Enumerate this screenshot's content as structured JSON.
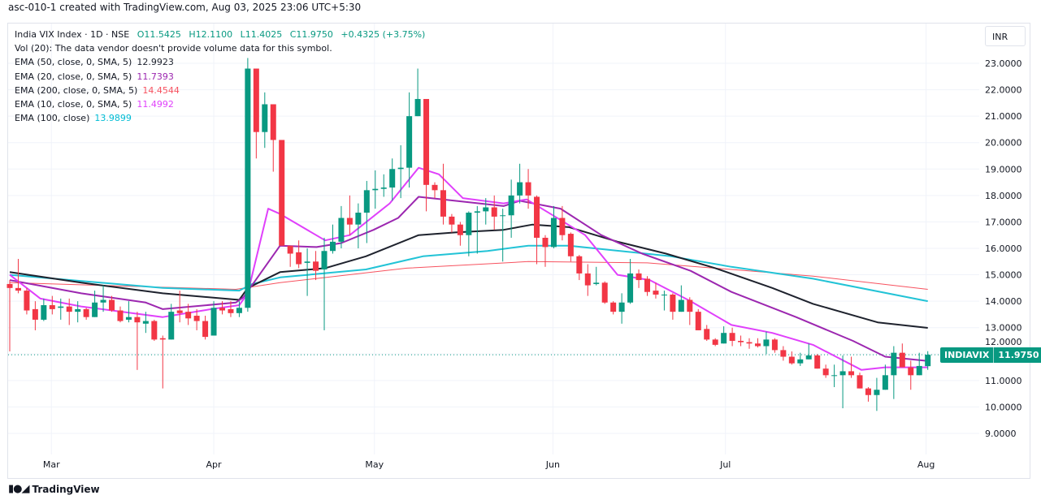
{
  "header": "asc-010-1 created with TradingView.com, Aug 03, 2025 23:06 UTC+5:30",
  "legend": {
    "symbol": "India VIX Index · 1D · NSE",
    "open": "O11.5425",
    "high": "H12.1100",
    "low": "L11.4025",
    "close": "C11.9750",
    "change": "+0.4325 (+3.75%)",
    "volume_note": "Vol (20): The data vendor doesn't provide volume data for this symbol.",
    "indicators": [
      {
        "label": "EMA (50, close, 0, SMA, 5)",
        "value": "12.9923",
        "color": "#1e222d"
      },
      {
        "label": "EMA (20, close, 0, SMA, 5)",
        "value": "11.7393",
        "color": "#9c27b0"
      },
      {
        "label": "EMA (200, close, 0, SMA, 5)",
        "value": "14.4544",
        "color": "#f7525f"
      },
      {
        "label": "EMA (10, close, 0, SMA, 5)",
        "value": "11.4992",
        "color": "#e040fb"
      },
      {
        "label": "EMA (100, close)",
        "value": "13.9899",
        "color": "#00bcd4"
      }
    ]
  },
  "currency": "INR",
  "price_label": {
    "symbol": "INDIAVIX",
    "value": "11.9750"
  },
  "footer": {
    "brand": "TradingView"
  },
  "colors": {
    "up": "#089981",
    "down": "#f23645",
    "grid": "#f0f3fa",
    "text": "#131722",
    "change": "#089981"
  },
  "chart_data": {
    "type": "candlestick",
    "title": "India VIX Index · 1D · NSE",
    "ylim": [
      8.2,
      23.9
    ],
    "y_ticks": [
      "23.0000",
      "22.0000",
      "21.0000",
      "20.0000",
      "19.0000",
      "18.0000",
      "17.0000",
      "16.0000",
      "15.0000",
      "14.0000",
      "13.0000",
      "12.0000",
      "11.0000",
      "10.0000",
      "9.0000"
    ],
    "x_ticks": [
      {
        "label": "Mar",
        "bar": 4.9
      },
      {
        "label": "Apr",
        "bar": 24
      },
      {
        "label": "May",
        "bar": 42.9
      },
      {
        "label": "Jun",
        "bar": 63.9
      },
      {
        "label": "Jul",
        "bar": 84.2
      },
      {
        "label": "Aug",
        "bar": 107.8
      }
    ],
    "last_price": 11.975,
    "ohlc": [
      [
        14.65,
        14.8,
        12.1,
        14.5
      ],
      [
        14.5,
        15.6,
        14.3,
        14.4
      ],
      [
        14.4,
        14.5,
        13.5,
        13.65
      ],
      [
        13.7,
        14.0,
        12.9,
        13.3
      ],
      [
        13.3,
        14.1,
        13.25,
        13.85
      ],
      [
        13.85,
        14.2,
        13.5,
        13.7
      ],
      [
        13.75,
        14.1,
        13.3,
        13.8
      ],
      [
        13.8,
        14.1,
        13.1,
        13.6
      ],
      [
        13.6,
        14.0,
        13.2,
        13.7
      ],
      [
        13.7,
        13.75,
        13.3,
        13.4
      ],
      [
        13.4,
        14.4,
        13.4,
        13.95
      ],
      [
        13.95,
        14.6,
        13.6,
        14.05
      ],
      [
        14.05,
        14.2,
        13.6,
        13.65
      ],
      [
        13.65,
        13.8,
        13.2,
        13.25
      ],
      [
        13.3,
        14.0,
        13.2,
        13.4
      ],
      [
        13.4,
        13.6,
        11.4,
        13.2
      ],
      [
        13.15,
        13.6,
        12.8,
        13.25
      ],
      [
        13.25,
        13.3,
        12.5,
        12.55
      ],
      [
        12.6,
        12.7,
        10.7,
        12.55
      ],
      [
        12.55,
        13.9,
        12.55,
        13.6
      ],
      [
        13.65,
        14.4,
        13.2,
        13.55
      ],
      [
        13.6,
        13.9,
        13.1,
        13.35
      ],
      [
        13.45,
        13.7,
        12.9,
        13.25
      ],
      [
        13.25,
        13.45,
        12.55,
        12.65
      ],
      [
        12.7,
        14.0,
        12.7,
        13.75
      ],
      [
        13.75,
        14.0,
        13.5,
        13.65
      ],
      [
        13.7,
        14.0,
        13.4,
        13.55
      ],
      [
        13.55,
        14.0,
        13.4,
        13.75
      ],
      [
        13.75,
        23.2,
        13.6,
        22.8
      ],
      [
        22.8,
        22.8,
        19.4,
        20.4
      ],
      [
        20.4,
        21.9,
        19.8,
        21.45
      ],
      [
        21.45,
        21.45,
        18.9,
        20.1
      ],
      [
        20.1,
        20.1,
        16.1,
        16.1
      ],
      [
        16.1,
        16.1,
        15.3,
        15.8
      ],
      [
        15.85,
        16.3,
        15.25,
        15.4
      ],
      [
        15.45,
        16.0,
        14.2,
        15.5
      ],
      [
        15.5,
        15.9,
        14.8,
        15.15
      ],
      [
        15.2,
        16.4,
        12.9,
        15.9
      ],
      [
        15.9,
        16.9,
        15.8,
        16.25
      ],
      [
        16.25,
        17.6,
        16.0,
        17.15
      ],
      [
        17.15,
        18.0,
        16.5,
        16.9
      ],
      [
        16.9,
        17.7,
        16.0,
        17.35
      ],
      [
        17.35,
        18.55,
        16.2,
        18.2
      ],
      [
        18.2,
        18.95,
        17.5,
        18.25
      ],
      [
        18.25,
        18.8,
        17.95,
        18.3
      ],
      [
        18.3,
        19.4,
        17.8,
        19.0
      ],
      [
        19.0,
        19.9,
        17.9,
        19.05
      ],
      [
        19.05,
        21.9,
        18.3,
        21.0
      ],
      [
        21.0,
        22.8,
        21.0,
        21.65
      ],
      [
        21.65,
        21.65,
        17.4,
        18.4
      ],
      [
        18.4,
        18.5,
        17.9,
        18.2
      ],
      [
        18.2,
        19.2,
        16.9,
        17.2
      ],
      [
        17.2,
        17.3,
        16.6,
        16.9
      ],
      [
        16.9,
        17.0,
        16.1,
        16.5
      ],
      [
        16.5,
        17.4,
        15.7,
        17.35
      ],
      [
        17.35,
        17.6,
        15.8,
        17.4
      ],
      [
        17.4,
        17.9,
        16.9,
        17.55
      ],
      [
        17.55,
        18.0,
        16.7,
        17.2
      ],
      [
        17.25,
        17.5,
        15.5,
        17.25
      ],
      [
        17.25,
        18.6,
        16.4,
        18.0
      ],
      [
        18.0,
        19.2,
        17.7,
        18.5
      ],
      [
        18.5,
        19.0,
        17.5,
        18.0
      ],
      [
        17.95,
        18.0,
        15.4,
        16.4
      ],
      [
        16.4,
        16.5,
        15.3,
        16.05
      ],
      [
        16.05,
        17.6,
        16.0,
        17.15
      ],
      [
        17.15,
        17.6,
        16.3,
        16.5
      ],
      [
        16.55,
        16.6,
        15.5,
        15.7
      ],
      [
        15.7,
        15.75,
        14.8,
        15.05
      ],
      [
        15.05,
        15.4,
        14.2,
        14.6
      ],
      [
        14.65,
        15.3,
        14.6,
        14.7
      ],
      [
        14.7,
        14.75,
        13.9,
        13.95
      ],
      [
        13.95,
        14.0,
        13.5,
        13.6
      ],
      [
        13.6,
        14.3,
        13.15,
        13.95
      ],
      [
        13.95,
        15.6,
        13.9,
        15.05
      ],
      [
        15.05,
        15.2,
        14.5,
        14.8
      ],
      [
        14.85,
        14.95,
        14.2,
        14.35
      ],
      [
        14.4,
        14.7,
        14.1,
        14.25
      ],
      [
        14.25,
        14.4,
        13.65,
        14.25
      ],
      [
        14.25,
        14.3,
        13.3,
        13.6
      ],
      [
        13.6,
        14.6,
        13.6,
        14.05
      ],
      [
        14.05,
        14.15,
        13.1,
        13.6
      ],
      [
        13.6,
        13.7,
        12.9,
        12.9
      ],
      [
        12.95,
        13.1,
        12.5,
        12.55
      ],
      [
        12.55,
        12.6,
        12.3,
        12.35
      ],
      [
        12.4,
        13.05,
        12.4,
        12.8
      ],
      [
        12.8,
        13.0,
        12.3,
        12.5
      ],
      [
        12.5,
        12.7,
        12.3,
        12.45
      ],
      [
        12.45,
        12.6,
        12.2,
        12.4
      ],
      [
        12.4,
        12.6,
        12.25,
        12.3
      ],
      [
        12.3,
        12.85,
        12.0,
        12.55
      ],
      [
        12.55,
        12.6,
        12.05,
        12.15
      ],
      [
        12.15,
        12.3,
        11.75,
        11.9
      ],
      [
        11.9,
        12.1,
        11.6,
        11.65
      ],
      [
        11.65,
        12.05,
        11.55,
        11.8
      ],
      [
        11.8,
        12.4,
        11.8,
        11.95
      ],
      [
        11.95,
        12.0,
        11.45,
        11.45
      ],
      [
        11.45,
        11.6,
        11.1,
        11.2
      ],
      [
        11.2,
        11.6,
        10.75,
        11.2
      ],
      [
        11.2,
        11.95,
        9.95,
        11.35
      ],
      [
        11.35,
        11.9,
        11.1,
        11.2
      ],
      [
        11.2,
        11.3,
        10.7,
        10.7
      ],
      [
        10.7,
        10.75,
        10.2,
        10.45
      ],
      [
        10.45,
        11.1,
        9.85,
        10.65
      ],
      [
        10.65,
        11.6,
        10.65,
        11.2
      ],
      [
        11.2,
        12.3,
        10.3,
        12.05
      ],
      [
        12.05,
        12.4,
        11.5,
        11.5
      ],
      [
        11.5,
        11.75,
        10.65,
        11.2
      ],
      [
        11.2,
        12.05,
        11.2,
        11.55
      ],
      [
        11.5425,
        12.11,
        11.4025,
        11.975
      ]
    ],
    "ohlc_fields": [
      "open",
      "high",
      "low",
      "close"
    ],
    "series": [
      {
        "name": "EMA 200",
        "color": "#f7525f",
        "width": 1,
        "points": [
          [
            0,
            14.7
          ],
          [
            26.6,
            14.45
          ],
          [
            31.8,
            14.7
          ],
          [
            46.7,
            15.25
          ],
          [
            61,
            15.5
          ],
          [
            75,
            15.45
          ],
          [
            84.9,
            15.2
          ],
          [
            94.5,
            14.95
          ],
          [
            108,
            14.45
          ]
        ]
      },
      {
        "name": "EMA 100",
        "color": "#22c3d6",
        "width": 2,
        "points": [
          [
            0,
            15.0
          ],
          [
            18,
            14.5
          ],
          [
            27,
            14.4
          ],
          [
            28.5,
            14.65
          ],
          [
            31.8,
            14.9
          ],
          [
            41.9,
            15.2
          ],
          [
            48.6,
            15.7
          ],
          [
            56.2,
            15.9
          ],
          [
            61,
            16.1
          ],
          [
            65.8,
            16.1
          ],
          [
            77.8,
            15.7
          ],
          [
            84.9,
            15.3
          ],
          [
            94.5,
            14.85
          ],
          [
            108,
            14.0
          ]
        ]
      },
      {
        "name": "EMA 50",
        "color": "#1e222d",
        "width": 2,
        "points": [
          [
            0,
            15.1
          ],
          [
            8.4,
            14.7
          ],
          [
            18,
            14.3
          ],
          [
            27,
            14.05
          ],
          [
            28,
            14.5
          ],
          [
            31.8,
            15.1
          ],
          [
            37.1,
            15.25
          ],
          [
            41.9,
            15.7
          ],
          [
            48.1,
            16.5
          ],
          [
            52.4,
            16.6
          ],
          [
            58.1,
            16.7
          ],
          [
            61.5,
            16.9
          ],
          [
            65.8,
            16.8
          ],
          [
            71.5,
            16.25
          ],
          [
            77.2,
            15.8
          ],
          [
            83,
            15.25
          ],
          [
            89.7,
            14.5
          ],
          [
            94.5,
            13.9
          ],
          [
            102.1,
            13.2
          ],
          [
            108,
            12.99
          ]
        ]
      },
      {
        "name": "EMA 20",
        "color": "#9c27b0",
        "width": 2,
        "points": [
          [
            0,
            14.8
          ],
          [
            8.4,
            14.3
          ],
          [
            16,
            13.95
          ],
          [
            18,
            13.7
          ],
          [
            26.6,
            13.95
          ],
          [
            27.5,
            14.15
          ],
          [
            31.8,
            16.1
          ],
          [
            36.1,
            16.05
          ],
          [
            39,
            16.2
          ],
          [
            42.8,
            16.7
          ],
          [
            45.7,
            17.15
          ],
          [
            48.1,
            17.95
          ],
          [
            52.4,
            17.8
          ],
          [
            58.1,
            17.6
          ],
          [
            60,
            17.8
          ],
          [
            64.8,
            17.5
          ],
          [
            69.6,
            16.5
          ],
          [
            74.4,
            15.8
          ],
          [
            80.1,
            15.15
          ],
          [
            84.9,
            14.35
          ],
          [
            92.5,
            13.4
          ],
          [
            99.2,
            12.5
          ],
          [
            103,
            11.9
          ],
          [
            108,
            11.74
          ]
        ]
      },
      {
        "name": "EMA 10",
        "color": "#e040fb",
        "width": 2,
        "points": [
          [
            0,
            15.0
          ],
          [
            3.6,
            14.1
          ],
          [
            8.4,
            13.8
          ],
          [
            18,
            13.4
          ],
          [
            23.7,
            13.7
          ],
          [
            27,
            13.85
          ],
          [
            28,
            14.3
          ],
          [
            30.4,
            17.5
          ],
          [
            31.8,
            17.3
          ],
          [
            37.1,
            16.3
          ],
          [
            40,
            16.5
          ],
          [
            44.7,
            17.7
          ],
          [
            48.1,
            19.05
          ],
          [
            50.5,
            18.8
          ],
          [
            53.3,
            17.9
          ],
          [
            58.1,
            17.7
          ],
          [
            60.8,
            17.85
          ],
          [
            63.9,
            17.25
          ],
          [
            67.7,
            16.5
          ],
          [
            71.5,
            15.0
          ],
          [
            75.3,
            14.8
          ],
          [
            80.1,
            14.0
          ],
          [
            84.9,
            13.1
          ],
          [
            89.7,
            12.8
          ],
          [
            94.5,
            12.35
          ],
          [
            100.2,
            11.4
          ],
          [
            103,
            11.5
          ],
          [
            108,
            11.5
          ]
        ]
      }
    ]
  }
}
